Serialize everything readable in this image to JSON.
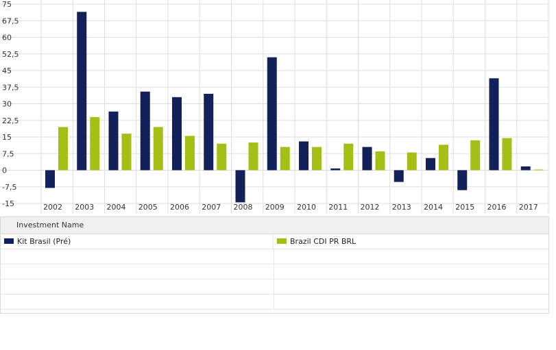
{
  "chart_data": {
    "type": "bar",
    "categories": [
      "2002",
      "2003",
      "2004",
      "2005",
      "2006",
      "2007",
      "2008",
      "2009",
      "2010",
      "2011",
      "2012",
      "2013",
      "2014",
      "2015",
      "2016",
      "2017"
    ],
    "series": [
      {
        "name": "Kit Brasil (Pré)",
        "color": "#13215a",
        "values": [
          -8.0,
          71.5,
          26.5,
          35.5,
          33.0,
          34.5,
          -14.5,
          51.0,
          13.0,
          0.8,
          10.5,
          -5.3,
          5.5,
          -9.0,
          41.5,
          1.7
        ]
      },
      {
        "name": "Brazil CDI PR BRL",
        "color": "#a5bf16",
        "values": [
          19.5,
          24.0,
          16.5,
          19.5,
          15.5,
          12.0,
          12.5,
          10.5,
          10.5,
          12.0,
          8.5,
          8.0,
          11.5,
          13.5,
          14.5,
          0.3
        ]
      }
    ],
    "yticks": [
      "75",
      "67,5",
      "60",
      "52,5",
      "45",
      "37,5",
      "30",
      "22,5",
      "15",
      "7,5",
      "0",
      "-7,5",
      "-15"
    ],
    "ylim": [
      -15,
      75
    ],
    "grid": true
  },
  "legend": {
    "header": "Investment Name",
    "items": [
      {
        "label": "Kit Brasil (Pré)",
        "color": "#13215a"
      },
      {
        "label": "Brazil CDI PR BRL",
        "color": "#a5bf16"
      }
    ]
  }
}
